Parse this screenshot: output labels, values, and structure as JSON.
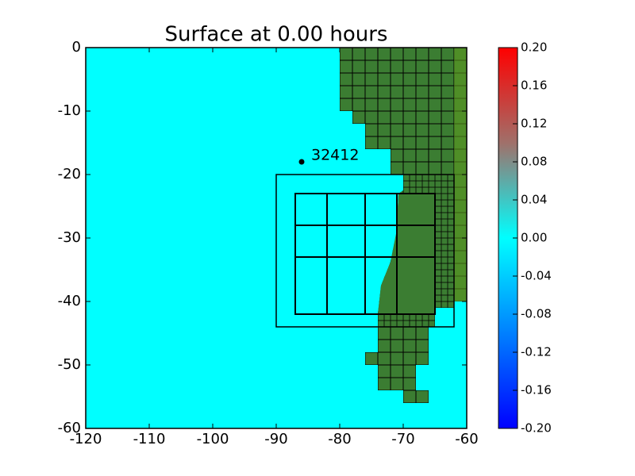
{
  "chart_data": {
    "type": "surface",
    "title": "Surface at 0.00 hours",
    "xlim": [
      -120,
      -60
    ],
    "ylim": [
      -60,
      0
    ],
    "xticks": [
      -120,
      -110,
      -100,
      -90,
      -80,
      -70,
      -60
    ],
    "yticks": [
      0,
      -10,
      -20,
      -30,
      -40,
      -50,
      -60
    ],
    "regions": [
      {
        "xlim": [
          -90,
          -62
        ],
        "ylim": [
          -44,
          -20
        ]
      },
      {
        "xlim": [
          -87,
          -65
        ],
        "ylim": [
          -42,
          -23
        ]
      }
    ],
    "gauges": [
      {
        "x": -86,
        "y": -18,
        "label": "32412"
      }
    ],
    "colorbar": {
      "lim": [
        -0.2,
        0.2
      ],
      "ticks": [
        {
          "value": 0.2,
          "label": "0.20"
        },
        {
          "value": 0.16,
          "label": "0.16"
        },
        {
          "value": 0.12,
          "label": "0.12"
        },
        {
          "value": 0.08,
          "label": "0.08"
        },
        {
          "value": 0.04,
          "label": "0.04"
        },
        {
          "value": 0,
          "label": "0.00"
        },
        {
          "value": -0.04,
          "label": "-0.04"
        },
        {
          "value": -0.08,
          "label": "-0.08"
        },
        {
          "value": -0.12,
          "label": "-0.12"
        },
        {
          "value": -0.16,
          "label": "-0.16"
        },
        {
          "value": -0.2,
          "label": "-0.20"
        }
      ]
    }
  }
}
